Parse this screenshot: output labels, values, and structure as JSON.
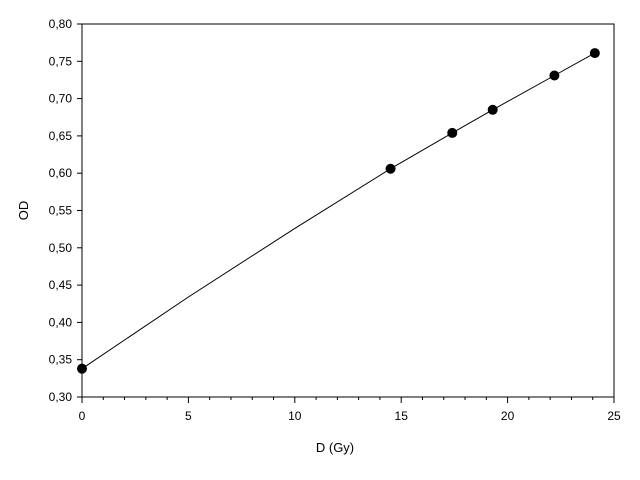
{
  "chart_data": {
    "type": "scatter",
    "xlabel": "D  (Gy)",
    "ylabel": "OD",
    "xlim": [
      0,
      25
    ],
    "ylim": [
      0.3,
      0.8
    ],
    "x_ticks": [
      0,
      5,
      10,
      15,
      20,
      25
    ],
    "x_tick_labels": [
      "0",
      "5",
      "10",
      "15",
      "20",
      "25"
    ],
    "y_ticks": [
      0.3,
      0.35,
      0.4,
      0.45,
      0.5,
      0.55,
      0.6,
      0.65,
      0.7,
      0.75,
      0.8
    ],
    "y_tick_labels": [
      "0,30",
      "0,35",
      "0,40",
      "0,45",
      "0,50",
      "0,55",
      "0,60",
      "0,65",
      "0,70",
      "0,75",
      "0,80"
    ],
    "x_minor_step": 1,
    "grid": false,
    "legend": "none",
    "marker_color": "#000000",
    "line_color": "#000000",
    "series": [
      {
        "x": [
          0,
          14.5,
          17.4,
          19.3,
          22.2,
          24.1
        ],
        "y": [
          0.338,
          0.606,
          0.654,
          0.685,
          0.731,
          0.761
        ]
      }
    ],
    "fit_curve": {
      "x": [
        0,
        5,
        10,
        14.5,
        17.4,
        19.3,
        22.2,
        24.1
      ],
      "y": [
        0.338,
        0.434,
        0.526,
        0.606,
        0.654,
        0.685,
        0.731,
        0.761
      ]
    }
  }
}
